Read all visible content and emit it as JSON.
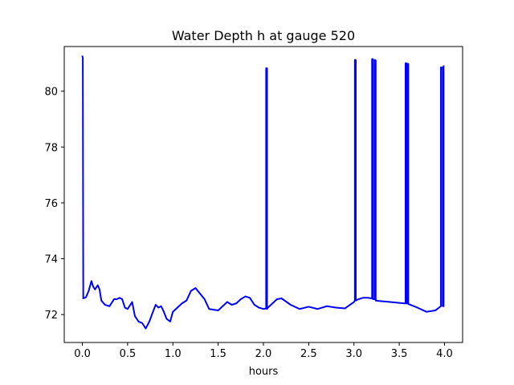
{
  "chart_data": {
    "type": "line",
    "title": "Water Depth h at gauge 520",
    "xlabel": "hours",
    "ylabel": "",
    "xlim": [
      -0.2,
      4.2
    ],
    "ylim": [
      71.0,
      81.6
    ],
    "xticks": [
      0.0,
      0.5,
      1.0,
      1.5,
      2.0,
      2.5,
      3.0,
      3.5,
      4.0
    ],
    "xtick_labels": [
      "0.0",
      "0.5",
      "1.0",
      "1.5",
      "2.0",
      "2.5",
      "3.0",
      "3.5",
      "4.0"
    ],
    "yticks": [
      72,
      74,
      76,
      78,
      80
    ],
    "ytick_labels": [
      "72",
      "74",
      "76",
      "78",
      "80"
    ],
    "grid": false,
    "legend": "none",
    "series": [
      {
        "color": "#0000ff",
        "x": [
          0.0,
          0.005,
          0.01,
          0.01,
          0.04,
          0.07,
          0.1,
          0.12,
          0.14,
          0.17,
          0.19,
          0.21,
          0.25,
          0.3,
          0.35,
          0.38,
          0.41,
          0.44,
          0.47,
          0.5,
          0.55,
          0.58,
          0.62,
          0.66,
          0.7,
          0.74,
          0.78,
          0.81,
          0.84,
          0.87,
          0.9,
          0.93,
          0.97,
          1.0,
          1.05,
          1.1,
          1.15,
          1.2,
          1.25,
          1.3,
          1.35,
          1.4,
          1.5,
          1.55,
          1.6,
          1.65,
          1.7,
          1.75,
          1.8,
          1.85,
          1.9,
          1.95,
          2.0,
          2.03,
          2.03,
          2.04,
          2.04,
          2.05,
          2.1,
          2.15,
          2.2,
          2.3,
          2.4,
          2.5,
          2.6,
          2.7,
          2.8,
          2.9,
          3.0,
          3.01,
          3.01,
          3.02,
          3.02,
          3.05,
          3.1,
          3.15,
          3.2,
          3.2,
          3.21,
          3.21,
          3.23,
          3.23,
          3.24,
          3.24,
          3.3,
          3.4,
          3.5,
          3.56,
          3.57,
          3.57,
          3.58,
          3.58,
          3.59,
          3.59,
          3.6,
          3.6,
          3.7,
          3.8,
          3.9,
          3.96,
          3.96,
          3.98,
          3.98,
          3.99,
          3.99
        ],
        "y": [
          81.25,
          81.2,
          72.58,
          72.58,
          72.62,
          72.85,
          73.2,
          73.0,
          72.9,
          73.05,
          72.9,
          72.5,
          72.35,
          72.3,
          72.55,
          72.55,
          72.6,
          72.55,
          72.25,
          72.2,
          72.45,
          71.95,
          71.75,
          71.7,
          71.5,
          71.75,
          72.1,
          72.35,
          72.25,
          72.3,
          72.1,
          71.85,
          71.75,
          72.1,
          72.25,
          72.4,
          72.5,
          72.85,
          72.95,
          72.75,
          72.55,
          72.2,
          72.15,
          72.3,
          72.45,
          72.35,
          72.4,
          72.55,
          72.65,
          72.6,
          72.35,
          72.25,
          72.2,
          72.22,
          80.82,
          80.82,
          72.2,
          72.25,
          72.4,
          72.55,
          72.58,
          72.35,
          72.2,
          72.28,
          72.2,
          72.3,
          72.25,
          72.22,
          72.45,
          72.5,
          81.12,
          81.12,
          72.5,
          72.55,
          72.6,
          72.6,
          72.58,
          81.15,
          81.15,
          72.55,
          72.55,
          81.12,
          81.1,
          72.5,
          72.48,
          72.45,
          72.42,
          72.4,
          72.4,
          81.0,
          81.0,
          72.4,
          72.4,
          80.98,
          80.98,
          72.38,
          72.25,
          72.1,
          72.15,
          72.3,
          80.85,
          80.85,
          72.3,
          72.3,
          80.9
        ]
      }
    ]
  }
}
